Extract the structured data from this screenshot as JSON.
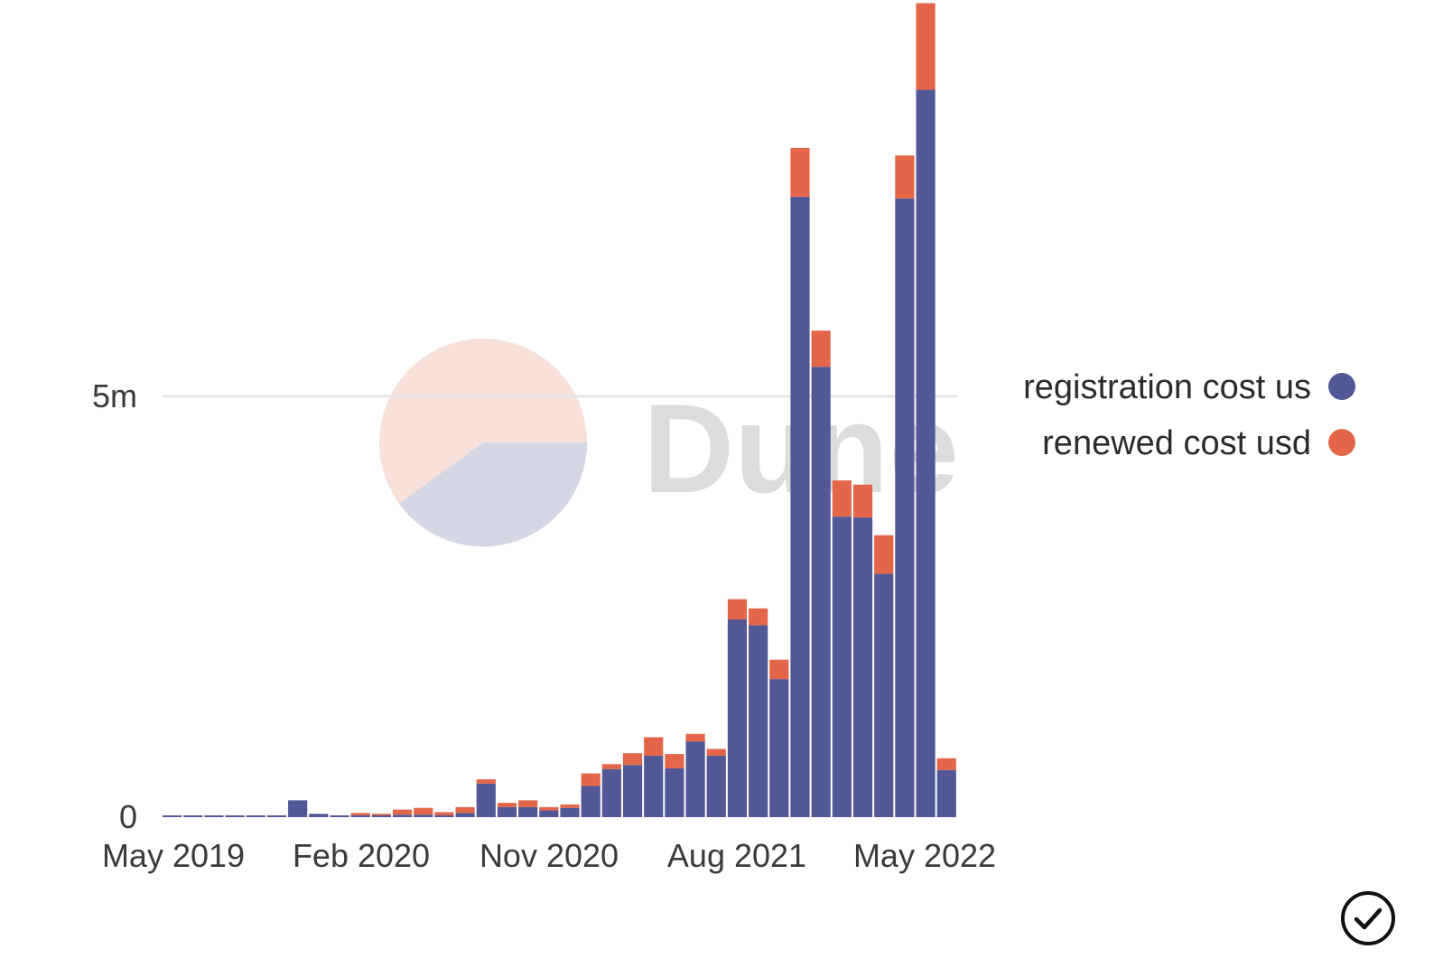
{
  "chart_data": {
    "type": "bar",
    "stacked": true,
    "x_ticks": [
      "May 2019",
      "Feb 2020",
      "Nov 2020",
      "Aug 2021",
      "May 2022"
    ],
    "y_ticks": [
      {
        "value": 0,
        "label": "0"
      },
      {
        "value": 5000000,
        "label": "5m"
      }
    ],
    "ylim": [
      0,
      9600000
    ],
    "grid": "horizontal",
    "legend_position": "right",
    "categories": [
      "May 2019",
      "Jun 2019",
      "Jul 2019",
      "Aug 2019",
      "Sep 2019",
      "Oct 2019",
      "Nov 2019",
      "Dec 2019",
      "Jan 2020",
      "Feb 2020",
      "Mar 2020",
      "Apr 2020",
      "May 2020",
      "Jun 2020",
      "Jul 2020",
      "Aug 2020",
      "Sep 2020",
      "Oct 2020",
      "Nov 2020",
      "Dec 2020",
      "Jan 2021",
      "Feb 2021",
      "Mar 2021",
      "Apr 2021",
      "May 2021",
      "Jun 2021",
      "Jul 2021",
      "Aug 2021",
      "Sep 2021",
      "Oct 2021",
      "Nov 2021",
      "Dec 2021",
      "Jan 2022",
      "Feb 2022",
      "Mar 2022",
      "Apr 2022",
      "May 2022",
      "Jun 2022",
      "Jul 2022"
    ],
    "series": [
      {
        "name": "registration cost us",
        "color": "#525796",
        "values": [
          5000,
          5000,
          5000,
          5000,
          5000,
          10000,
          200000,
          40000,
          15000,
          20000,
          20000,
          30000,
          30000,
          20000,
          50000,
          400000,
          120000,
          120000,
          80000,
          110000,
          370000,
          570000,
          620000,
          730000,
          580000,
          900000,
          730000,
          2350000,
          2280000,
          1640000,
          7370000,
          5350000,
          3570000,
          3560000,
          2890000,
          7350000,
          8640000,
          560000,
          0
        ]
      },
      {
        "name": "renewed cost usd",
        "color": "#e4664a",
        "values": [
          0,
          0,
          0,
          0,
          0,
          0,
          0,
          0,
          0,
          30000,
          20000,
          60000,
          80000,
          40000,
          70000,
          50000,
          50000,
          80000,
          40000,
          40000,
          150000,
          60000,
          140000,
          220000,
          170000,
          90000,
          80000,
          240000,
          200000,
          230000,
          580000,
          430000,
          430000,
          390000,
          460000,
          510000,
          1030000,
          140000,
          0
        ]
      }
    ]
  },
  "watermark": {
    "text": "Dune",
    "colors": [
      "#f8e1da",
      "#d6d7e4",
      "#dcdcdc"
    ]
  },
  "checkmark_icon": "check-circle-icon"
}
